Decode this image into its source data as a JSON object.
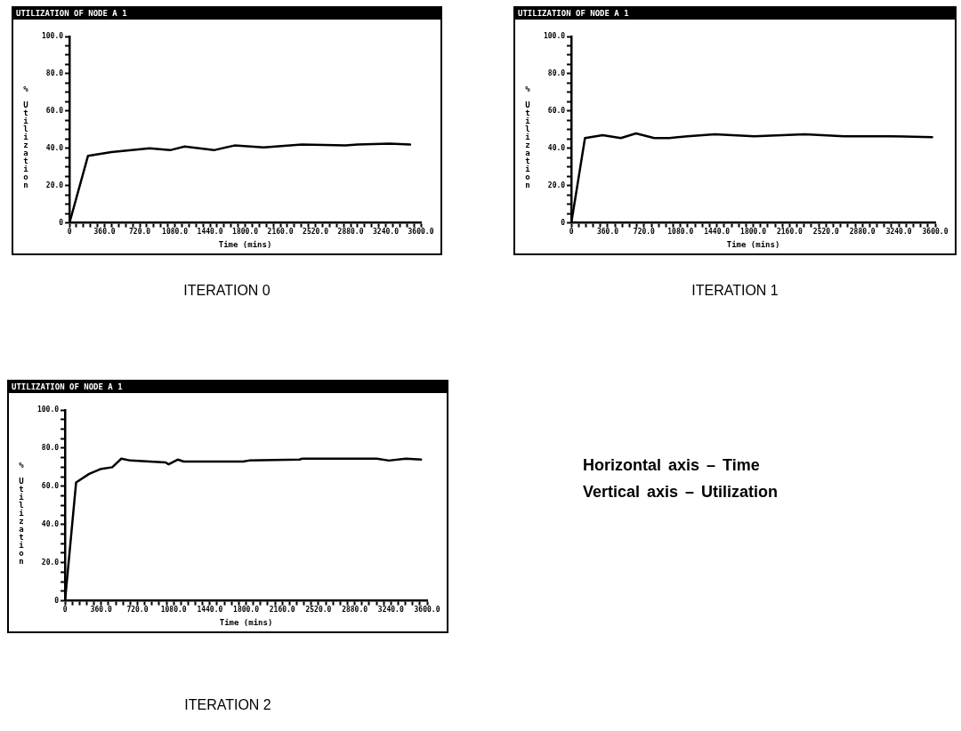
{
  "chart_data": [
    {
      "type": "line",
      "title": "UTILIZATION OF NODE A 1",
      "xlabel": "Time (mins)",
      "ylabel": "% Utilization",
      "annotations": [
        "ITERATION 0"
      ],
      "grid": false,
      "legend": false,
      "marker": "none",
      "xlim": [
        0,
        3600
      ],
      "ylim": [
        0,
        100
      ],
      "xticks": [
        {
          "value": 0,
          "label": "0"
        },
        {
          "value": 72,
          "label": null
        },
        {
          "value": 144,
          "label": null
        },
        {
          "value": 216,
          "label": null
        },
        {
          "value": 288,
          "label": null
        },
        {
          "value": 360,
          "label": "360.0"
        },
        {
          "value": 432,
          "label": null
        },
        {
          "value": 504,
          "label": null
        },
        {
          "value": 576,
          "label": null
        },
        {
          "value": 648,
          "label": null
        },
        {
          "value": 720,
          "label": "720.0"
        },
        {
          "value": 792,
          "label": null
        },
        {
          "value": 864,
          "label": null
        },
        {
          "value": 936,
          "label": null
        },
        {
          "value": 1008,
          "label": null
        },
        {
          "value": 1080,
          "label": "1080.0"
        },
        {
          "value": 1152,
          "label": null
        },
        {
          "value": 1224,
          "label": null
        },
        {
          "value": 1296,
          "label": null
        },
        {
          "value": 1368,
          "label": null
        },
        {
          "value": 1440,
          "label": "1440.0"
        },
        {
          "value": 1512,
          "label": null
        },
        {
          "value": 1584,
          "label": null
        },
        {
          "value": 1656,
          "label": null
        },
        {
          "value": 1728,
          "label": null
        },
        {
          "value": 1800,
          "label": "1800.0"
        },
        {
          "value": 1872,
          "label": null
        },
        {
          "value": 1944,
          "label": null
        },
        {
          "value": 2016,
          "label": null
        },
        {
          "value": 2088,
          "label": null
        },
        {
          "value": 2160,
          "label": "2160.0"
        },
        {
          "value": 2232,
          "label": null
        },
        {
          "value": 2304,
          "label": null
        },
        {
          "value": 2376,
          "label": null
        },
        {
          "value": 2448,
          "label": null
        },
        {
          "value": 2520,
          "label": "2520.0"
        },
        {
          "value": 2592,
          "label": null
        },
        {
          "value": 2664,
          "label": null
        },
        {
          "value": 2736,
          "label": null
        },
        {
          "value": 2808,
          "label": null
        },
        {
          "value": 2880,
          "label": "2880.0"
        },
        {
          "value": 2952,
          "label": null
        },
        {
          "value": 3024,
          "label": null
        },
        {
          "value": 3096,
          "label": null
        },
        {
          "value": 3168,
          "label": null
        },
        {
          "value": 3240,
          "label": "3240.0"
        },
        {
          "value": 3312,
          "label": null
        },
        {
          "value": 3384,
          "label": null
        },
        {
          "value": 3456,
          "label": null
        },
        {
          "value": 3528,
          "label": null
        },
        {
          "value": 3600,
          "label": "3600.0"
        }
      ],
      "yticks": [
        {
          "value": 0,
          "label": "0"
        },
        {
          "value": 5,
          "label": null
        },
        {
          "value": 10,
          "label": null
        },
        {
          "value": 15,
          "label": null
        },
        {
          "value": 20,
          "label": "20.0"
        },
        {
          "value": 25,
          "label": null
        },
        {
          "value": 30,
          "label": null
        },
        {
          "value": 35,
          "label": null
        },
        {
          "value": 40,
          "label": "40.0"
        },
        {
          "value": 45,
          "label": null
        },
        {
          "value": 50,
          "label": null
        },
        {
          "value": 55,
          "label": null
        },
        {
          "value": 60,
          "label": "60.0"
        },
        {
          "value": 65,
          "label": null
        },
        {
          "value": 70,
          "label": null
        },
        {
          "value": 75,
          "label": null
        },
        {
          "value": 80,
          "label": "80.0"
        },
        {
          "value": 85,
          "label": null
        },
        {
          "value": 90,
          "label": null
        },
        {
          "value": 95,
          "label": null
        },
        {
          "value": 100,
          "label": "100.0"
        }
      ],
      "series": [
        {
          "color": "#000000",
          "x": [
            0,
            190,
            430,
            730,
            820,
            1030,
            1180,
            1330,
            1480,
            1690,
            1990,
            2380,
            2830,
            2950,
            3280,
            3490
          ],
          "values": [
            0,
            36,
            38,
            39.5,
            40,
            39,
            41,
            40,
            39,
            41.5,
            40.5,
            42,
            41.5,
            42,
            42.5,
            42
          ]
        }
      ]
    },
    {
      "type": "line",
      "title": "UTILIZATION OF NODE A 1",
      "xlabel": "Time (mins)",
      "ylabel": "% Utilization",
      "annotations": [
        "ITERATION 1"
      ],
      "grid": false,
      "legend": false,
      "marker": "none",
      "xlim": [
        0,
        3600
      ],
      "ylim": [
        0,
        100
      ],
      "xticks": [
        {
          "value": 0,
          "label": "0"
        },
        {
          "value": 72,
          "label": null
        },
        {
          "value": 144,
          "label": null
        },
        {
          "value": 216,
          "label": null
        },
        {
          "value": 288,
          "label": null
        },
        {
          "value": 360,
          "label": "360.0"
        },
        {
          "value": 432,
          "label": null
        },
        {
          "value": 504,
          "label": null
        },
        {
          "value": 576,
          "label": null
        },
        {
          "value": 648,
          "label": null
        },
        {
          "value": 720,
          "label": "720.0"
        },
        {
          "value": 792,
          "label": null
        },
        {
          "value": 864,
          "label": null
        },
        {
          "value": 936,
          "label": null
        },
        {
          "value": 1008,
          "label": null
        },
        {
          "value": 1080,
          "label": "1080.0"
        },
        {
          "value": 1152,
          "label": null
        },
        {
          "value": 1224,
          "label": null
        },
        {
          "value": 1296,
          "label": null
        },
        {
          "value": 1368,
          "label": null
        },
        {
          "value": 1440,
          "label": "1440.0"
        },
        {
          "value": 1512,
          "label": null
        },
        {
          "value": 1584,
          "label": null
        },
        {
          "value": 1656,
          "label": null
        },
        {
          "value": 1728,
          "label": null
        },
        {
          "value": 1800,
          "label": "1800.0"
        },
        {
          "value": 1872,
          "label": null
        },
        {
          "value": 1944,
          "label": null
        },
        {
          "value": 2016,
          "label": null
        },
        {
          "value": 2088,
          "label": null
        },
        {
          "value": 2160,
          "label": "2160.0"
        },
        {
          "value": 2232,
          "label": null
        },
        {
          "value": 2304,
          "label": null
        },
        {
          "value": 2376,
          "label": null
        },
        {
          "value": 2448,
          "label": null
        },
        {
          "value": 2520,
          "label": "2520.0"
        },
        {
          "value": 2592,
          "label": null
        },
        {
          "value": 2664,
          "label": null
        },
        {
          "value": 2736,
          "label": null
        },
        {
          "value": 2808,
          "label": null
        },
        {
          "value": 2880,
          "label": "2880.0"
        },
        {
          "value": 2952,
          "label": null
        },
        {
          "value": 3024,
          "label": null
        },
        {
          "value": 3096,
          "label": null
        },
        {
          "value": 3168,
          "label": null
        },
        {
          "value": 3240,
          "label": "3240.0"
        },
        {
          "value": 3312,
          "label": null
        },
        {
          "value": 3384,
          "label": null
        },
        {
          "value": 3456,
          "label": null
        },
        {
          "value": 3528,
          "label": null
        },
        {
          "value": 3600,
          "label": "3600.0"
        }
      ],
      "yticks": [
        {
          "value": 0,
          "label": "0"
        },
        {
          "value": 5,
          "label": null
        },
        {
          "value": 10,
          "label": null
        },
        {
          "value": 15,
          "label": null
        },
        {
          "value": 20,
          "label": "20.0"
        },
        {
          "value": 25,
          "label": null
        },
        {
          "value": 30,
          "label": null
        },
        {
          "value": 35,
          "label": null
        },
        {
          "value": 40,
          "label": "40.0"
        },
        {
          "value": 45,
          "label": null
        },
        {
          "value": 50,
          "label": null
        },
        {
          "value": 55,
          "label": null
        },
        {
          "value": 60,
          "label": "60.0"
        },
        {
          "value": 65,
          "label": null
        },
        {
          "value": 70,
          "label": null
        },
        {
          "value": 75,
          "label": null
        },
        {
          "value": 80,
          "label": "80.0"
        },
        {
          "value": 85,
          "label": null
        },
        {
          "value": 90,
          "label": null
        },
        {
          "value": 95,
          "label": null
        },
        {
          "value": 100,
          "label": "100.0"
        }
      ],
      "series": [
        {
          "color": "#000000",
          "x": [
            0,
            135,
            310,
            490,
            640,
            820,
            970,
            1150,
            1420,
            1810,
            2310,
            2700,
            3150,
            3570
          ],
          "values": [
            0,
            45.5,
            47,
            45.5,
            48,
            45.5,
            45.5,
            46.5,
            47.5,
            46.5,
            47.5,
            46.5,
            46.5,
            46
          ]
        }
      ]
    },
    {
      "type": "line",
      "title": "UTILIZATION OF NODE A 1",
      "xlabel": "Time (mins)",
      "ylabel": "% Utilization",
      "annotations": [
        "ITERATION 2"
      ],
      "grid": false,
      "legend": false,
      "marker": "none",
      "xlim": [
        0,
        3600
      ],
      "ylim": [
        0,
        100
      ],
      "xticks": [
        {
          "value": 0,
          "label": "0"
        },
        {
          "value": 72,
          "label": null
        },
        {
          "value": 144,
          "label": null
        },
        {
          "value": 216,
          "label": null
        },
        {
          "value": 288,
          "label": null
        },
        {
          "value": 360,
          "label": "360.0"
        },
        {
          "value": 432,
          "label": null
        },
        {
          "value": 504,
          "label": null
        },
        {
          "value": 576,
          "label": null
        },
        {
          "value": 648,
          "label": null
        },
        {
          "value": 720,
          "label": "720.0"
        },
        {
          "value": 792,
          "label": null
        },
        {
          "value": 864,
          "label": null
        },
        {
          "value": 936,
          "label": null
        },
        {
          "value": 1008,
          "label": null
        },
        {
          "value": 1080,
          "label": "1080.0"
        },
        {
          "value": 1152,
          "label": null
        },
        {
          "value": 1224,
          "label": null
        },
        {
          "value": 1296,
          "label": null
        },
        {
          "value": 1368,
          "label": null
        },
        {
          "value": 1440,
          "label": "1440.0"
        },
        {
          "value": 1512,
          "label": null
        },
        {
          "value": 1584,
          "label": null
        },
        {
          "value": 1656,
          "label": null
        },
        {
          "value": 1728,
          "label": null
        },
        {
          "value": 1800,
          "label": "1800.0"
        },
        {
          "value": 1872,
          "label": null
        },
        {
          "value": 1944,
          "label": null
        },
        {
          "value": 2016,
          "label": null
        },
        {
          "value": 2088,
          "label": null
        },
        {
          "value": 2160,
          "label": "2160.0"
        },
        {
          "value": 2232,
          "label": null
        },
        {
          "value": 2304,
          "label": null
        },
        {
          "value": 2376,
          "label": null
        },
        {
          "value": 2448,
          "label": null
        },
        {
          "value": 2520,
          "label": "2520.0"
        },
        {
          "value": 2592,
          "label": null
        },
        {
          "value": 2664,
          "label": null
        },
        {
          "value": 2736,
          "label": null
        },
        {
          "value": 2808,
          "label": null
        },
        {
          "value": 2880,
          "label": "2880.0"
        },
        {
          "value": 2952,
          "label": null
        },
        {
          "value": 3024,
          "label": null
        },
        {
          "value": 3096,
          "label": null
        },
        {
          "value": 3168,
          "label": null
        },
        {
          "value": 3240,
          "label": "3240.0"
        },
        {
          "value": 3312,
          "label": null
        },
        {
          "value": 3384,
          "label": null
        },
        {
          "value": 3456,
          "label": null
        },
        {
          "value": 3528,
          "label": null
        },
        {
          "value": 3600,
          "label": "3600.0"
        }
      ],
      "yticks": [
        {
          "value": 0,
          "label": "0"
        },
        {
          "value": 5,
          "label": null
        },
        {
          "value": 10,
          "label": null
        },
        {
          "value": 15,
          "label": null
        },
        {
          "value": 20,
          "label": "20.0"
        },
        {
          "value": 25,
          "label": null
        },
        {
          "value": 30,
          "label": null
        },
        {
          "value": 35,
          "label": null
        },
        {
          "value": 40,
          "label": "40.0"
        },
        {
          "value": 45,
          "label": null
        },
        {
          "value": 50,
          "label": null
        },
        {
          "value": 55,
          "label": null
        },
        {
          "value": 60,
          "label": "60.0"
        },
        {
          "value": 65,
          "label": null
        },
        {
          "value": 70,
          "label": null
        },
        {
          "value": 75,
          "label": null
        },
        {
          "value": 80,
          "label": "80.0"
        },
        {
          "value": 85,
          "label": null
        },
        {
          "value": 90,
          "label": null
        },
        {
          "value": 95,
          "label": null
        },
        {
          "value": 100,
          "label": "100.0"
        }
      ],
      "series": [
        {
          "color": "#000000",
          "x": [
            0,
            110,
            240,
            350,
            470,
            560,
            650,
            1000,
            1030,
            1120,
            1180,
            1770,
            1830,
            2330,
            2360,
            3100,
            3220,
            3390,
            3540
          ],
          "values": [
            0,
            62,
            66.5,
            69,
            70,
            74.5,
            73.5,
            72.5,
            71.5,
            74,
            73,
            73,
            73.5,
            74,
            74.5,
            74.5,
            73.5,
            74.5,
            74
          ]
        }
      ]
    },
    {
      "type": "other",
      "annotations": [
        "Horizontal axis – Time",
        "Vertical axis – Utilization"
      ]
    }
  ]
}
